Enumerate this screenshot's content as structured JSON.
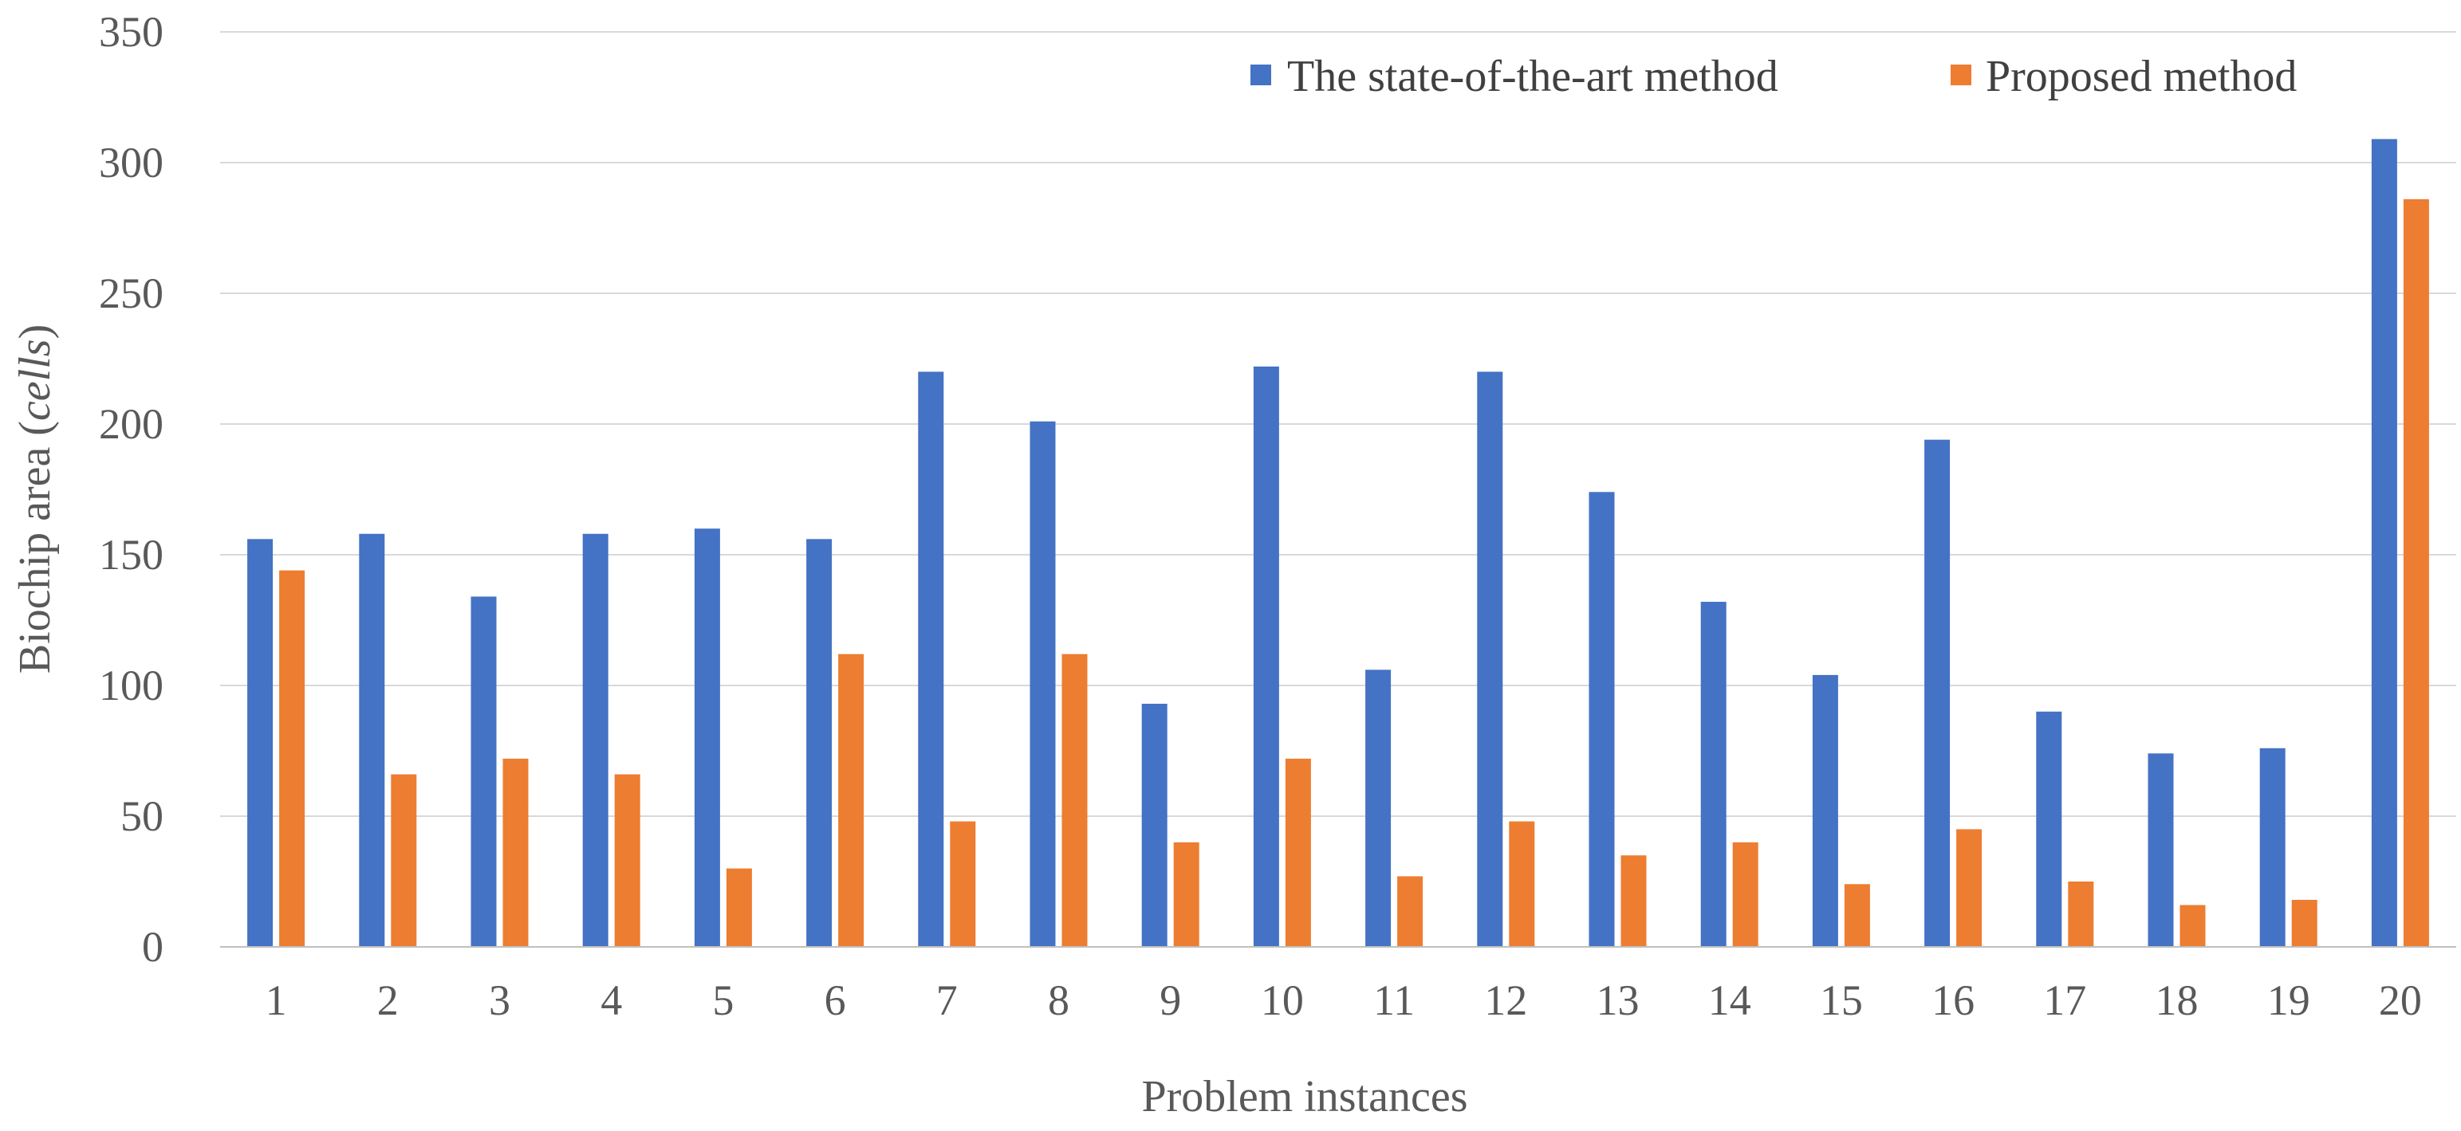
{
  "chart_data": {
    "type": "bar",
    "title": "",
    "xlabel": "Problem instances",
    "ylabel_prefix": "Biochip area (",
    "ylabel_unit": "cells",
    "ylabel_suffix": ")",
    "ylim": [
      0,
      350
    ],
    "yticks": [
      0,
      50,
      100,
      150,
      200,
      250,
      300,
      350
    ],
    "grid": true,
    "legend_position": "top-right",
    "categories": [
      "1",
      "2",
      "3",
      "4",
      "5",
      "6",
      "7",
      "8",
      "9",
      "10",
      "11",
      "12",
      "13",
      "14",
      "15",
      "16",
      "17",
      "18",
      "19",
      "20"
    ],
    "series": [
      {
        "name": "The state-of-the-art method",
        "color": "#4472C4",
        "values": [
          156,
          158,
          134,
          158,
          160,
          156,
          220,
          201,
          93,
          222,
          106,
          220,
          174,
          132,
          104,
          194,
          90,
          74,
          76,
          309
        ]
      },
      {
        "name": "Proposed method",
        "color": "#ED7D31",
        "values": [
          144,
          66,
          72,
          66,
          30,
          112,
          48,
          112,
          40,
          72,
          27,
          48,
          35,
          40,
          24,
          45,
          25,
          16,
          18,
          286
        ]
      }
    ]
  },
  "colors": {
    "grid": "#D9D9D9",
    "axis": "#BFBFBF"
  }
}
